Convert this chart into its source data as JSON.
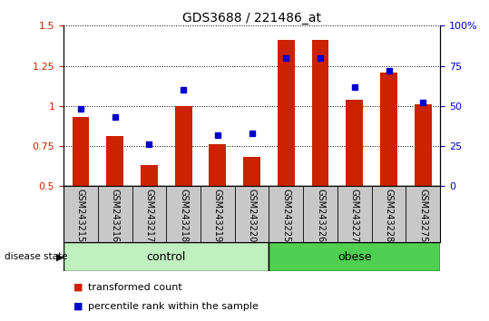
{
  "title": "GDS3688 / 221486_at",
  "categories": [
    "GSM243215",
    "GSM243216",
    "GSM243217",
    "GSM243218",
    "GSM243219",
    "GSM243220",
    "GSM243225",
    "GSM243226",
    "GSM243227",
    "GSM243228",
    "GSM243275"
  ],
  "red_values": [
    0.93,
    0.81,
    0.63,
    1.0,
    0.76,
    0.68,
    1.41,
    1.41,
    1.04,
    1.21,
    1.01
  ],
  "blue_values": [
    48,
    43,
    26,
    60,
    32,
    33,
    80,
    80,
    62,
    72,
    52
  ],
  "ylim_left": [
    0.5,
    1.5
  ],
  "ylim_right": [
    0,
    100
  ],
  "yticks_left": [
    0.5,
    0.75,
    1.0,
    1.25,
    1.5
  ],
  "ytick_labels_left": [
    "0.5",
    "0.75",
    "1",
    "1.25",
    "1.5"
  ],
  "yticks_right": [
    0,
    25,
    50,
    75,
    100
  ],
  "ytick_labels_right": [
    "0",
    "25",
    "50",
    "75",
    "100%"
  ],
  "groups": [
    {
      "label": "control",
      "start": 0,
      "end": 5
    },
    {
      "label": "obese",
      "start": 6,
      "end": 10
    }
  ],
  "bar_color": "#cc2200",
  "dot_color": "#0000cc",
  "bar_width": 0.5,
  "tick_area_color": "#c8c8c8",
  "control_color": "#c0f0c0",
  "obese_color": "#50d050",
  "disease_state_label": "disease state",
  "legend_items": [
    "transformed count",
    "percentile rank within the sample"
  ]
}
